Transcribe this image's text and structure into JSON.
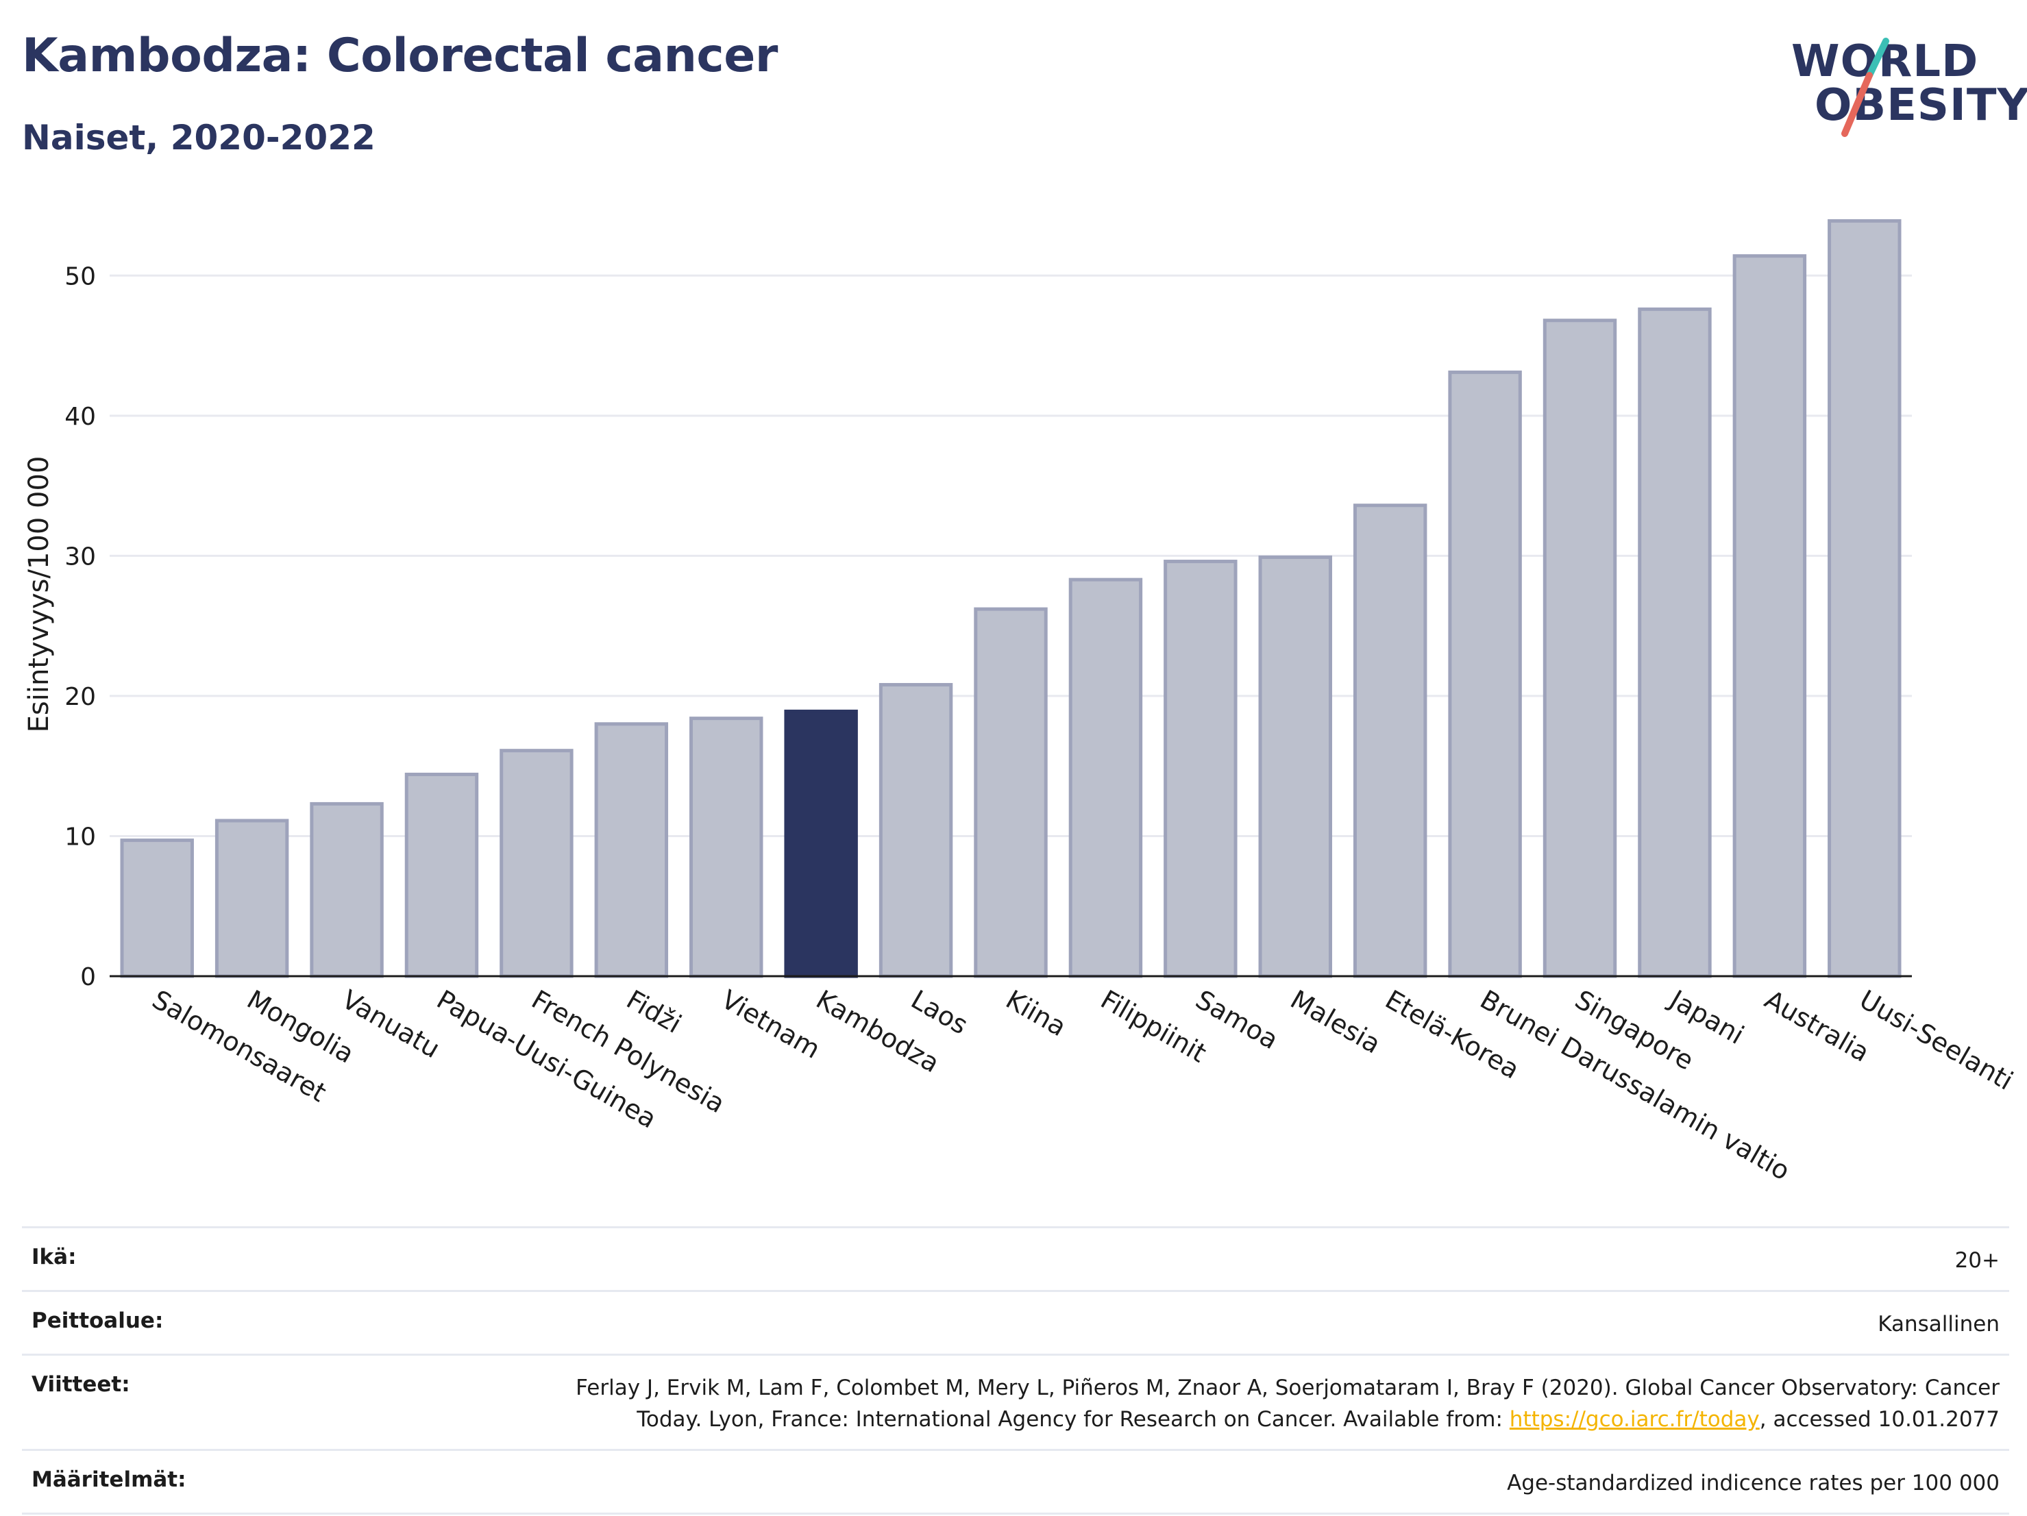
{
  "header": {
    "title": "Kambodza: Colorectal cancer",
    "subtitle": "Naiset, 2020-2022"
  },
  "logo": {
    "line1": "WORLD",
    "line2": "OBESITY",
    "slash_color_top": "#3bbfb5",
    "slash_color_bottom": "#e5675b"
  },
  "colors": {
    "bar_default": "#bcc0cd",
    "bar_default_border": "#9ea3bb",
    "bar_highlight": "#2b3560",
    "gridline": "#e8e9ef",
    "axis": "#1c1c1c"
  },
  "chart_data": {
    "type": "bar",
    "title": "Kambodza: Colorectal cancer",
    "subtitle": "Naiset, 2020-2022",
    "xlabel": "",
    "ylabel": "Esiintyvyys/100 000",
    "categories": [
      "Salomonsaaret",
      "Mongolia",
      "Vanuatu",
      "Papua-Uusi-Guinea",
      "French Polynesia",
      "Fidži",
      "Vietnam",
      "Kambodza",
      "Laos",
      "Kiina",
      "Filippiinit",
      "Samoa",
      "Malesia",
      "Etelä-Korea",
      "Brunei Darussalamin valtio",
      "Singapore",
      "Japani",
      "Australia",
      "Uusi-Seelanti"
    ],
    "values": [
      9.7,
      11.1,
      12.3,
      14.4,
      16.1,
      18.0,
      18.4,
      18.9,
      20.8,
      26.2,
      28.3,
      29.6,
      29.9,
      33.6,
      43.1,
      46.8,
      47.6,
      51.4,
      53.9
    ],
    "highlight": "Kambodza",
    "ylim": [
      0,
      55
    ],
    "yticks": [
      0,
      10,
      20,
      30,
      40,
      50
    ],
    "grid": true
  },
  "footer": {
    "rows": [
      {
        "label": "Ikä:",
        "value": "20+"
      },
      {
        "label": "Peittoalue:",
        "value": "Kansallinen"
      },
      {
        "label": "Viitteet:",
        "value_pre": "Ferlay J, Ervik M, Lam F, Colombet M, Mery L, Piñeros M, Znaor A, Soerjomataram I, Bray F (2020). Global Cancer Observatory: Cancer Today. Lyon, France: International Agency for Research on Cancer. Available from: ",
        "link": "https://gco.iarc.fr/today",
        "value_post": ", accessed 10.01.2077"
      },
      {
        "label": "Määritelmät:",
        "value": "Age-standardized indicence rates per 100 000"
      }
    ]
  }
}
